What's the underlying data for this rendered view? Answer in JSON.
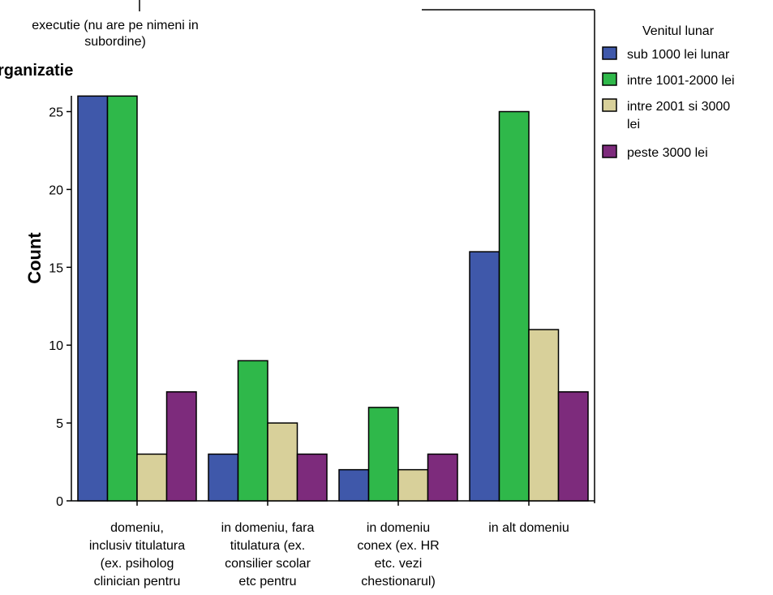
{
  "header": {
    "panel_title": "execuție",
    "panel_title_lines": [
      "executie (nu are pe nimeni in",
      "subordine)"
    ],
    "subtitle": "rganizatie"
  },
  "colors": {
    "sub_1000": "#3f58aa",
    "intre_1001_2000": "#2fb84a",
    "intre_2001_3000": "#d8d09a",
    "peste_3000": "#7d2b7c"
  },
  "chart_data": {
    "type": "bar",
    "ylabel": "Count",
    "ylim": [
      0,
      26
    ],
    "yticks": [
      0,
      5,
      10,
      15,
      20,
      25
    ],
    "grid": false,
    "legend_position": "right",
    "categories": [
      [
        "domeniu,",
        "inclusiv titulatura",
        "(ex. psiholog",
        "clinician pentru"
      ],
      [
        "in domeniu, fara",
        "titulatura (ex.",
        "consilier scolar",
        "etc pentru"
      ],
      [
        "in domeniu",
        "conex (ex. HR",
        "etc. vezi",
        "chestionarul)"
      ],
      [
        "in alt domeniu"
      ]
    ],
    "legend_title": "Venitul lunar",
    "series": [
      {
        "name": "sub 1000 lei lunar",
        "name_lines": [
          "sub 1000 lei lunar"
        ],
        "color": "#3f58aa",
        "values": [
          26,
          3,
          2,
          16
        ]
      },
      {
        "name": "intre 1001-2000 lei",
        "name_lines": [
          "intre 1001-2000 lei"
        ],
        "color": "#2fb84a",
        "values": [
          26,
          9,
          6,
          25
        ]
      },
      {
        "name": "intre 2001 si 3000 lei",
        "name_lines": [
          "intre 2001 si 3000",
          "lei"
        ],
        "color": "#d8d09a",
        "values": [
          3,
          5,
          2,
          11
        ]
      },
      {
        "name": "peste 3000 lei",
        "name_lines": [
          "peste 3000 lei"
        ],
        "color": "#7d2b7c",
        "values": [
          7,
          3,
          3,
          7
        ]
      }
    ]
  }
}
